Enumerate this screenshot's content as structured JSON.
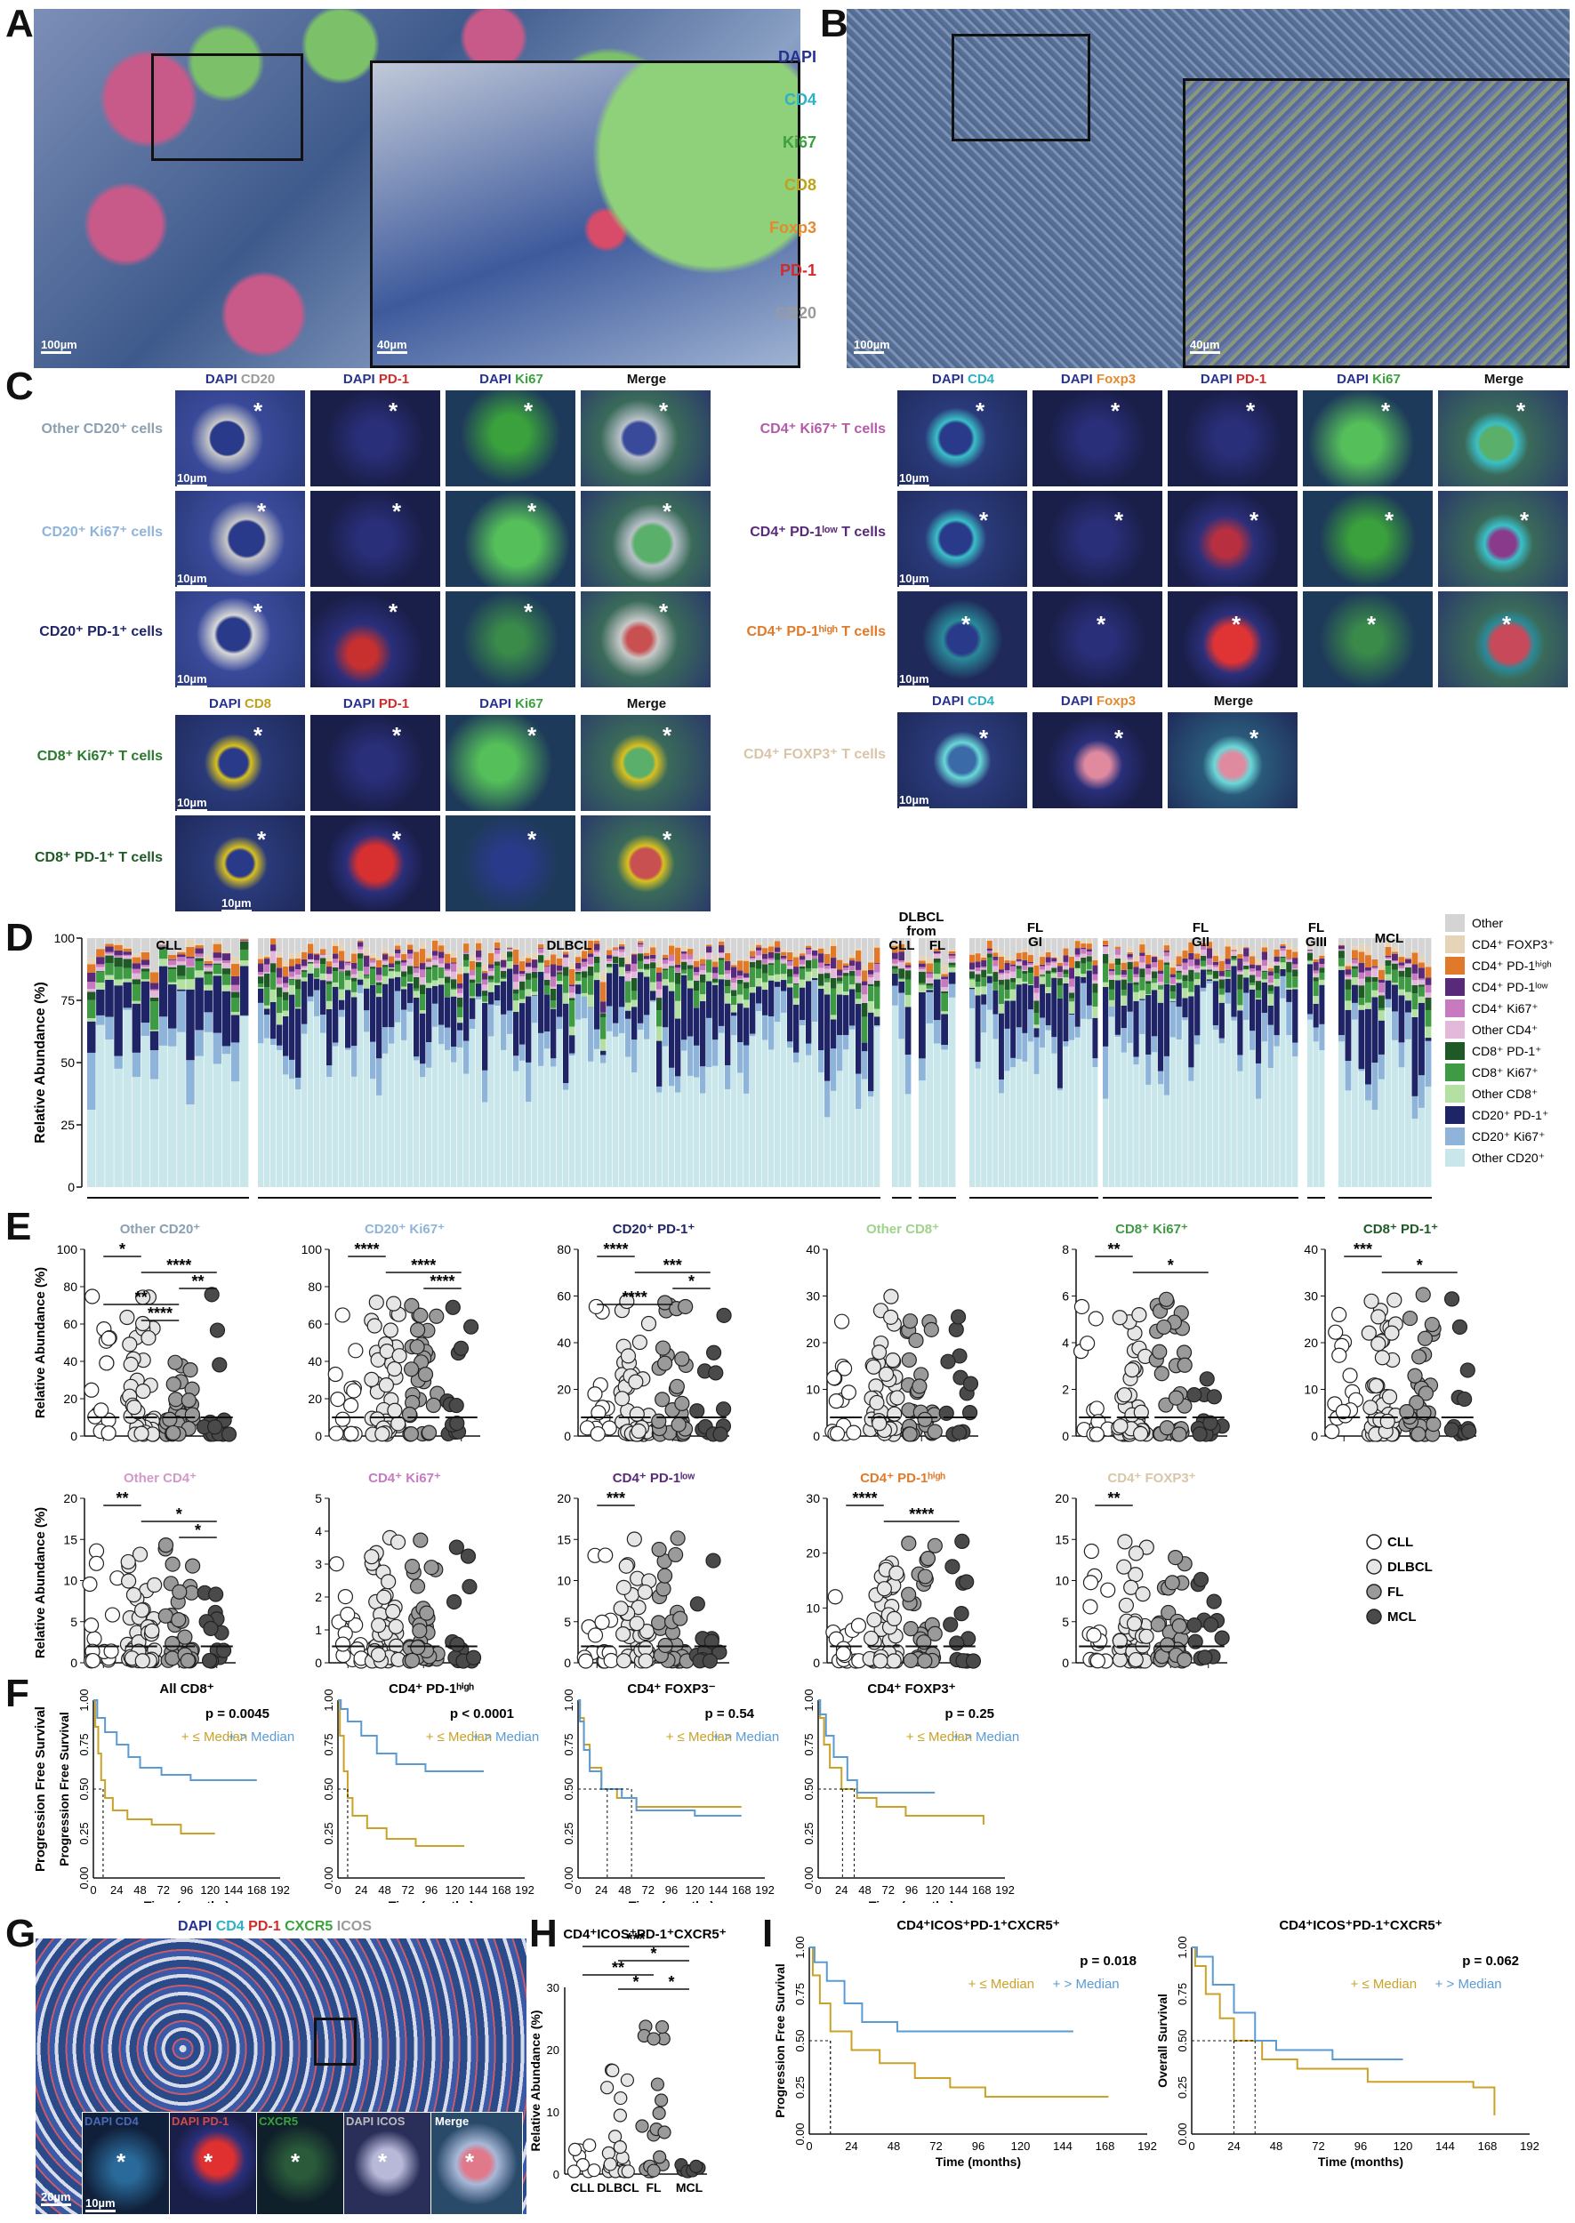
{
  "panels": {
    "a": "A",
    "b": "B",
    "c": "C",
    "d": "D",
    "e": "E",
    "f": "F",
    "g": "G",
    "h": "H",
    "i": "I"
  },
  "colors": {
    "dapi": "#27318f",
    "cd4": "#2bb3c4",
    "ki67": "#3aa13c",
    "cd8": "#bfa21a",
    "foxp3": "#e58a2e",
    "pd1": "#d32a2a",
    "cd20": "#9a9a9a",
    "cll": "#ffffff",
    "dlbcl": "#e6e6e6",
    "fl": "#9a9a9a",
    "mcl": "#4a4a4a",
    "km_low": "#c9a227",
    "km_high": "#5a9bd5"
  },
  "ab": {
    "channels": [
      "DAPI",
      "CD4",
      "Ki67",
      "CD8",
      "Foxp3",
      "PD-1",
      "CD20"
    ],
    "scale_a_main": "100µm",
    "scale_a_inset": "40µm",
    "scale_b_main": "100µm",
    "scale_b_inset": "40µm"
  },
  "c": {
    "left_headers": [
      "DAPI",
      "CD20",
      "DAPI",
      "PD-1",
      "DAPI",
      "Ki67",
      "Merge"
    ],
    "left_rows": [
      "Other CD20⁺ cells",
      "CD20⁺ Ki67⁺ cells",
      "CD20⁺ PD-1⁺ cells"
    ],
    "left_headers2": [
      "DAPI",
      "CD8",
      "DAPI",
      "PD-1",
      "DAPI",
      "Ki67",
      "Merge"
    ],
    "left_rows2": [
      "CD8⁺ Ki67⁺ T cells",
      "CD8⁺ PD-1⁺ T cells"
    ],
    "right_headers": [
      "DAPI",
      "CD4",
      "DAPI",
      "Foxp3",
      "DAPI",
      "PD-1",
      "DAPI",
      "Ki67",
      "Merge"
    ],
    "right_rows": [
      "CD4⁺ Ki67⁺ T cells",
      "CD4⁺ PD-1ˡᵒʷ T cells",
      "CD4⁺ PD-1ʰⁱᵍʰ T cells"
    ],
    "right_headers2": [
      "DAPI",
      "CD4",
      "DAPI",
      "Foxp3",
      "Merge"
    ],
    "right_rows2": [
      "CD4⁺ FOXP3⁺ T cells"
    ],
    "scale": "10µm",
    "star": "*"
  },
  "d": {
    "ylabel": "Relative Abundance (%)",
    "yticks": [
      "0",
      "25",
      "50",
      "75",
      "100"
    ],
    "groups": [
      "CLL",
      "DLBCL",
      "DLBCL",
      "from",
      "CLL",
      "FL",
      "FL",
      "GI",
      "FL",
      "GII",
      "FL",
      "GIII",
      "MCL"
    ],
    "legend": [
      {
        "label": "Other",
        "color": "#d4d4d4"
      },
      {
        "label": "CD4⁺ FOXP3⁺",
        "color": "#e6d4b8"
      },
      {
        "label": "CD4⁺ PD-1ʰⁱᵍʰ",
        "color": "#e07a2a"
      },
      {
        "label": "CD4⁺ PD-1ˡᵒʷ",
        "color": "#5a2a7a"
      },
      {
        "label": "CD4⁺ Ki67⁺",
        "color": "#c77ac0"
      },
      {
        "label": "Other CD4⁺",
        "color": "#e2b9d9"
      },
      {
        "label": "CD8⁺ PD-1⁺",
        "color": "#1f5a26"
      },
      {
        "label": "CD8⁺ Ki67⁺",
        "color": "#3f9a44"
      },
      {
        "label": "Other CD8⁺",
        "color": "#b5e0a4"
      },
      {
        "label": "CD20⁺ PD-1⁺",
        "color": "#1f2466"
      },
      {
        "label": "CD20⁺ Ki67⁺",
        "color": "#8fb4d9"
      },
      {
        "label": "Other CD20⁺",
        "color": "#c9e6ea"
      }
    ]
  },
  "e": {
    "ylabel": "Relative Abundance (%)",
    "legend": [
      "CLL",
      "DLBCL",
      "FL",
      "MCL"
    ],
    "plots_top": [
      {
        "title": "Other CD20⁺",
        "color": "#8a9fb0",
        "yticks": [
          "0",
          "20",
          "40",
          "60",
          "80",
          "100"
        ],
        "sig": [
          "*",
          "****",
          "**",
          "**",
          "****"
        ]
      },
      {
        "title": "CD20⁺ Ki67⁺",
        "color": "#8fb4d9",
        "yticks": [
          "0",
          "20",
          "40",
          "60",
          "80",
          "100"
        ],
        "sig": [
          "****",
          "****",
          "****"
        ]
      },
      {
        "title": "CD20⁺ PD-1⁺",
        "color": "#1f2466",
        "yticks": [
          "0",
          "20",
          "40",
          "60",
          "80"
        ],
        "sig": [
          "****",
          "***",
          "*",
          "****"
        ]
      },
      {
        "title": "Other CD8⁺",
        "color": "#9ed38a",
        "yticks": [
          "0",
          "10",
          "20",
          "30",
          "40"
        ],
        "sig": []
      },
      {
        "title": "CD8⁺ Ki67⁺",
        "color": "#3f9a44",
        "yticks": [
          "0",
          "2",
          "4",
          "6",
          "8"
        ],
        "sig": [
          "**",
          "*"
        ]
      },
      {
        "title": "CD8⁺ PD-1⁺",
        "color": "#1f5a26",
        "yticks": [
          "0",
          "10",
          "20",
          "30",
          "40"
        ],
        "sig": [
          "***",
          "*"
        ]
      }
    ],
    "plots_bottom": [
      {
        "title": "Other CD4⁺",
        "color": "#d39ac8",
        "yticks": [
          "0",
          "5",
          "10",
          "15",
          "20"
        ],
        "sig": [
          "**",
          "*",
          "*"
        ]
      },
      {
        "title": "CD4⁺ Ki67⁺",
        "color": "#c77ac0",
        "yticks": [
          "0",
          "1",
          "2",
          "3",
          "4",
          "5"
        ],
        "sig": []
      },
      {
        "title": "CD4⁺ PD-1ˡᵒʷ",
        "color": "#5a2a7a",
        "yticks": [
          "0",
          "5",
          "10",
          "15",
          "20"
        ],
        "sig": [
          "***"
        ]
      },
      {
        "title": "CD4⁺ PD-1ʰⁱᵍʰ",
        "color": "#e07a2a",
        "yticks": [
          "0",
          "10",
          "20",
          "30"
        ],
        "sig": [
          "****",
          "****"
        ]
      },
      {
        "title": "CD4⁺ FOXP3⁺",
        "color": "#d8c6a6",
        "yticks": [
          "0",
          "5",
          "10",
          "15",
          "20"
        ],
        "sig": [
          "**"
        ]
      }
    ]
  },
  "f": {
    "ylabel": "Progression Free Survival",
    "xlabel": "Time (months)",
    "xticks": [
      "0",
      "24",
      "48",
      "72",
      "96",
      "120",
      "144",
      "168",
      "192"
    ],
    "yticks": [
      "0.00",
      "0.25",
      "0.50",
      "0.75",
      "1.00"
    ],
    "legend_low": "≤ Median",
    "legend_high": "> Median",
    "plots": [
      {
        "title": "All CD8⁺",
        "p": "p = 0.0045"
      },
      {
        "title": "CD4⁺ PD-1ʰⁱᵍʰ",
        "p": "p < 0.0001"
      },
      {
        "title": "CD4⁺ FOXP3⁻",
        "p": "p = 0.54"
      },
      {
        "title": "CD4⁺ FOXP3⁺",
        "p": "p = 0.25"
      }
    ]
  },
  "g": {
    "channels": [
      "DAPI",
      "CD4",
      "PD-1",
      "CXCR5",
      "ICOS"
    ],
    "inset_labels": [
      "DAPI CD4",
      "DAPI PD-1",
      "CXCR5",
      "DAPI ICOS",
      "Merge"
    ],
    "scale_main": "20µm",
    "scale_inset": "10µm"
  },
  "h": {
    "title": "CD4⁺ICOS⁺PD-1⁺CXCR5⁺",
    "ylabel": "Relative Abundance (%)",
    "yticks": [
      "0",
      "10",
      "20",
      "30"
    ],
    "xcats": [
      "CLL",
      "DLBCL",
      "FL",
      "MCL"
    ],
    "sig": [
      "*",
      "**",
      "*",
      "*",
      "***"
    ]
  },
  "i": {
    "title": "CD4⁺ICOS⁺PD-1⁺CXCR5⁺",
    "xlabel": "Time (months)",
    "xticks": [
      "0",
      "24",
      "48",
      "72",
      "96",
      "120",
      "144",
      "168",
      "192"
    ],
    "yticks": [
      "0.00",
      "0.25",
      "0.50",
      "0.75",
      "1.00"
    ],
    "plots": [
      {
        "ylabel": "Progression Free Survival",
        "p": "p = 0.018"
      },
      {
        "ylabel": "Overall Survival",
        "p": "p = 0.062"
      }
    ],
    "legend_low": "≤ Median",
    "legend_high": "> Median"
  }
}
